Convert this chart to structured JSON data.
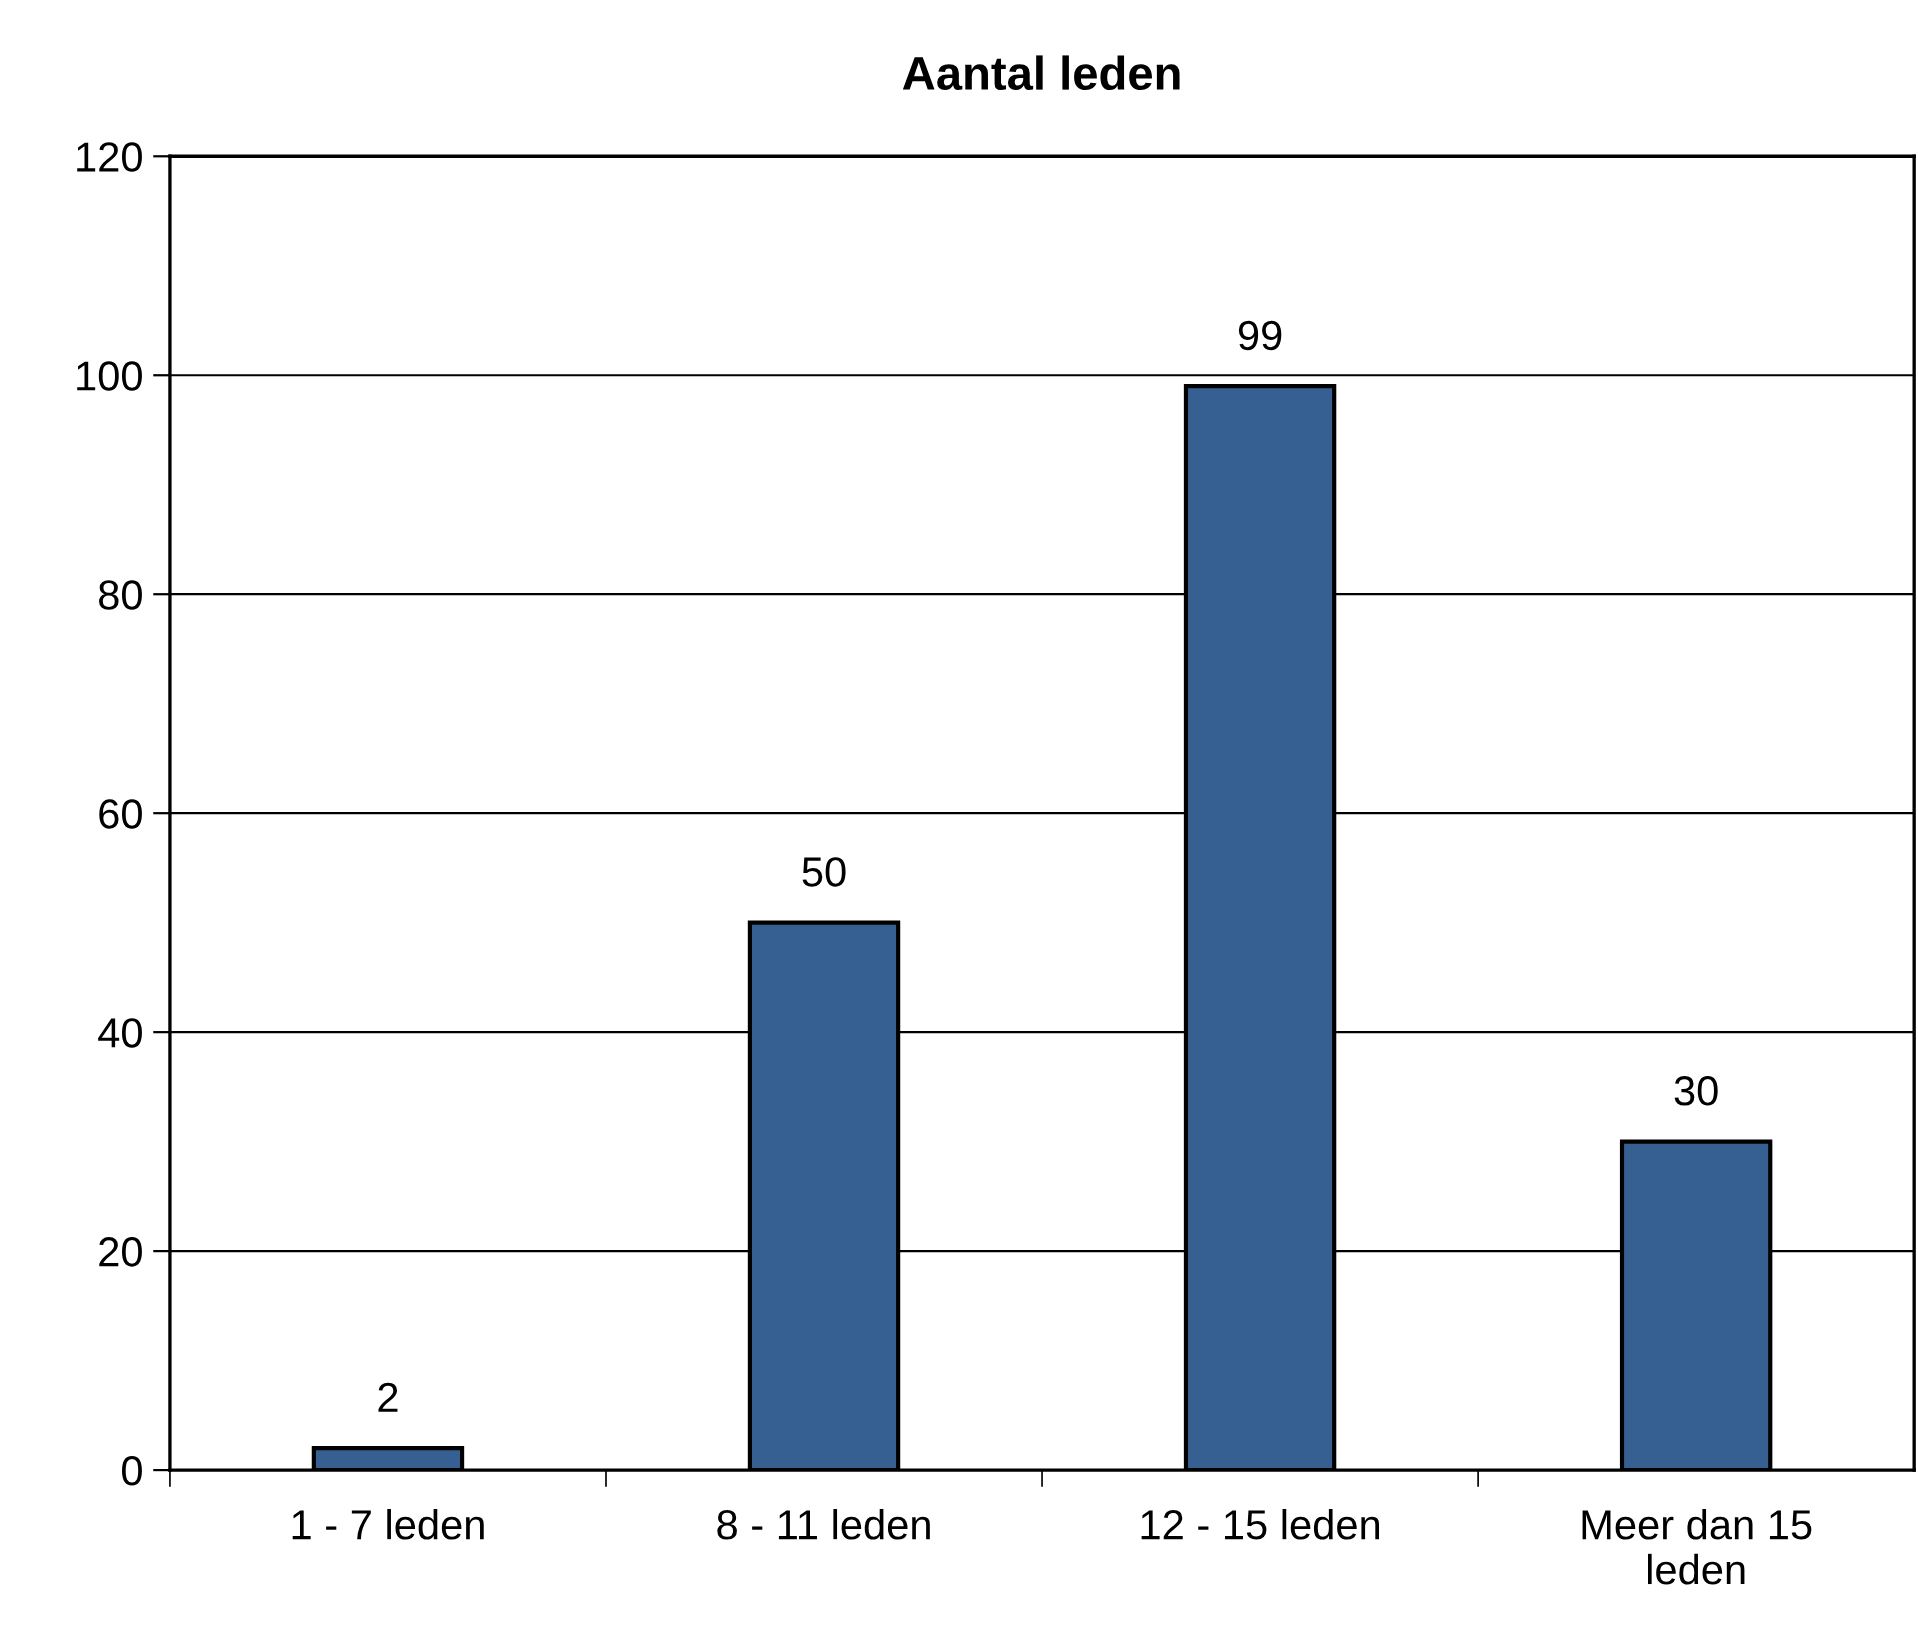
{
  "chart_data": {
    "type": "bar",
    "title": "Aantal leden",
    "categories": [
      "1 - 7 leden",
      "8 - 11 leden",
      "12 - 15 leden",
      "Meer dan 15\nleden"
    ],
    "values": [
      2,
      50,
      99,
      30
    ],
    "color": "#366092",
    "ylim": [
      0,
      120
    ],
    "yticks": [
      0,
      20,
      40,
      60,
      80,
      100,
      120
    ],
    "grid": "y",
    "data_labels": true,
    "legend": false
  }
}
